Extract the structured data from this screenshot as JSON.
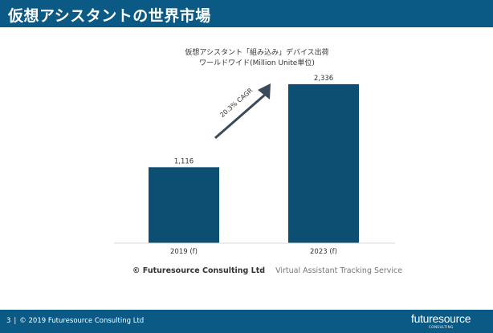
{
  "header": {
    "title": "仮想アシスタントの世界市場"
  },
  "chart_data": {
    "type": "bar",
    "title": "仮想アシスタント「組み込み」デバイス出荷",
    "subtitle": "ワールドワイド(Million Unite単位)",
    "categories": [
      "2019 (f)",
      "2023 (f)"
    ],
    "values": [
      1116,
      2336
    ],
    "value_labels": [
      "1,116",
      "2,336"
    ],
    "ylim": [
      0,
      2500
    ],
    "grid": false,
    "legend": "none",
    "bar_color": "#0d4f72",
    "annotation": {
      "text": "20.3% CAGR",
      "type": "arrow",
      "color": "#3a4a5c"
    }
  },
  "source": {
    "org": "© Futuresource Consulting Ltd",
    "service": "Virtual Assistant Tracking Service"
  },
  "footer": {
    "page": "3",
    "separator": "|",
    "copyright": "© 2019 Futuresource Consulting Ltd",
    "logo_text": "futuresource",
    "logo_sub": "CONSULTING"
  },
  "colors": {
    "brand": "#0b5a86",
    "bar": "#0d4f72"
  }
}
